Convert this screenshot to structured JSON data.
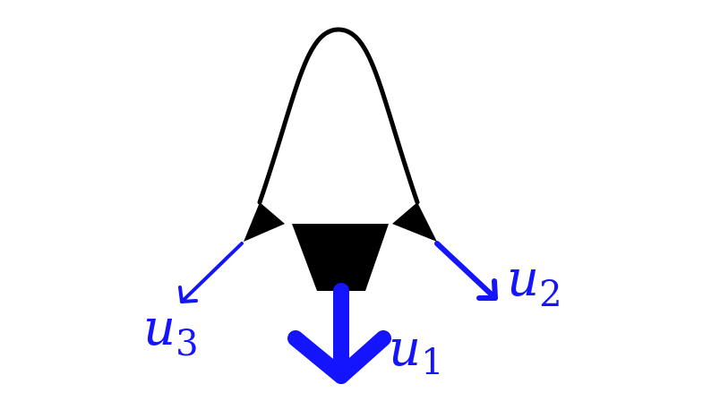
{
  "colors": {
    "diagram_ink": "#000000",
    "arrow": "#1414ff",
    "background": "#ffffff"
  },
  "labels": {
    "u1": {
      "base": "u",
      "sub": "1"
    },
    "u2": {
      "base": "u",
      "sub": "2"
    },
    "u3": {
      "base": "u",
      "sub": "3"
    }
  }
}
